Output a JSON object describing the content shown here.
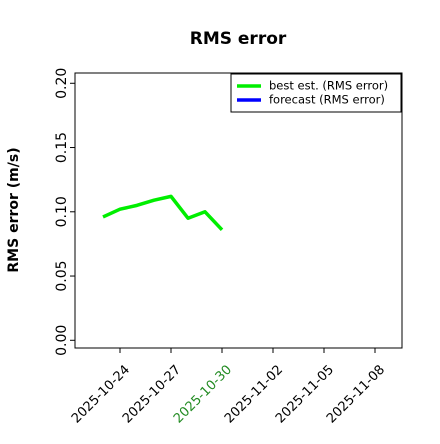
{
  "chart_data": {
    "type": "line",
    "title": "RMS error",
    "ylabel": "RMS error (m/s)",
    "x": [
      "2025-10-23",
      "2025-10-24",
      "2025-10-25",
      "2025-10-26",
      "2025-10-27",
      "2025-10-28",
      "2025-10-29",
      "2025-10-30"
    ],
    "series": [
      {
        "name": "best est. (RMS error)",
        "color": "#00ee00",
        "values": [
          0.096,
          0.102,
          0.105,
          0.109,
          0.112,
          0.095,
          0.1,
          0.086
        ]
      },
      {
        "name": "forecast (RMS error)",
        "color": "#0000ff",
        "values": [
          null,
          null,
          null,
          null,
          null,
          null,
          null,
          null
        ]
      }
    ],
    "xlim": [
      "2025-10-21",
      "2025-11-10"
    ],
    "xticks": [
      "2025-10-24",
      "2025-10-27",
      "2025-10-30",
      "2025-11-02",
      "2025-11-05",
      "2025-11-08"
    ],
    "xtick_colors": [
      "#000000",
      "#000000",
      "#228b22",
      "#000000",
      "#000000",
      "#000000"
    ],
    "ylim": [
      -0.006,
      0.208
    ],
    "yticks": [
      {
        "value": 0,
        "label": "0.00"
      },
      {
        "value": 0.05,
        "label": "0.05"
      },
      {
        "value": 0.1,
        "label": "0.10"
      },
      {
        "value": 0.15,
        "label": "0.15"
      },
      {
        "value": 0.2,
        "label": "0.20"
      }
    ],
    "legend": "upper right"
  }
}
